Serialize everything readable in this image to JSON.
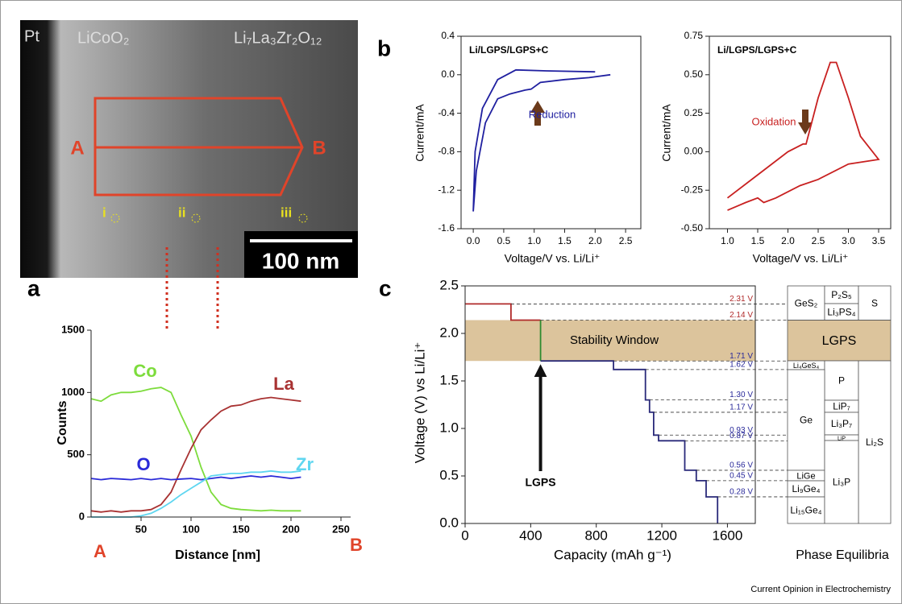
{
  "panel_labels": [
    "a",
    "b",
    "c"
  ],
  "image": {
    "labels": {
      "pt": "Pt",
      "cathode": "LiCoO₂",
      "electrolyte": "Li₇La₃Zr₂O₁₂",
      "a": "A",
      "b": "B",
      "points": [
        "i",
        "ii",
        "iii"
      ],
      "scale": "100 nm"
    }
  },
  "chart_data": [
    {
      "type": "line",
      "x_label": "Distance [nm]",
      "y_label": "Counts",
      "x": [
        0,
        10,
        20,
        30,
        40,
        50,
        60,
        70,
        80,
        90,
        100,
        110,
        120,
        130,
        140,
        150,
        160,
        170,
        180,
        190,
        200,
        210
      ],
      "series": [
        {
          "name": "Co",
          "color": "#7ddc3c",
          "values": [
            950,
            930,
            980,
            1000,
            1000,
            1010,
            1030,
            1040,
            1000,
            820,
            650,
            400,
            200,
            100,
            70,
            60,
            55,
            50,
            55,
            50,
            50,
            50
          ]
        },
        {
          "name": "La",
          "color": "#a83232",
          "values": [
            50,
            40,
            50,
            40,
            50,
            50,
            60,
            100,
            200,
            380,
            550,
            700,
            780,
            850,
            890,
            900,
            930,
            950,
            960,
            950,
            940,
            930
          ]
        },
        {
          "name": "O",
          "color": "#2a2ad8",
          "values": [
            310,
            300,
            310,
            305,
            300,
            310,
            300,
            310,
            300,
            305,
            310,
            300,
            310,
            320,
            310,
            320,
            330,
            320,
            330,
            320,
            310,
            320
          ]
        },
        {
          "name": "Zr",
          "color": "#5fd6f0",
          "values": [
            0,
            0,
            0,
            0,
            0,
            10,
            30,
            70,
            120,
            180,
            230,
            280,
            330,
            340,
            350,
            350,
            360,
            360,
            370,
            360,
            360,
            370
          ]
        }
      ],
      "xlim": [
        0,
        250
      ],
      "xticks": [
        50,
        100,
        150,
        200,
        250
      ],
      "ylim": [
        0,
        1500
      ],
      "yticks": [
        0,
        500,
        1000,
        1500
      ]
    },
    {
      "type": "line",
      "title": "Li/LGPS/LGPS+C",
      "annotation": "Reduction",
      "x_label": "Voltage/V vs. Li/Li⁺",
      "y_label": "Current/mA",
      "series": [
        {
          "color": "#2020a0",
          "x": [
            2.25,
            1.9,
            1.5,
            1.1,
            0.95,
            0.85,
            0.6,
            0.4,
            0.2,
            0.05,
            0.0,
            0.03,
            0.15,
            0.4,
            0.7,
            1.2,
            2.0
          ],
          "values": [
            0.0,
            -0.03,
            -0.05,
            -0.08,
            -0.15,
            -0.16,
            -0.2,
            -0.25,
            -0.5,
            -1.0,
            -1.42,
            -0.8,
            -0.35,
            -0.05,
            0.05,
            0.04,
            0.03
          ]
        }
      ],
      "xlim": [
        -0.2,
        2.75
      ],
      "xticks": [
        {
          "value": 0,
          "label": "0.0"
        },
        0.5,
        {
          "value": 1,
          "label": "1.0"
        },
        1.5,
        {
          "value": 2,
          "label": "2.0"
        },
        2.5
      ],
      "ylim": [
        -1.6,
        0.4
      ],
      "yticks": [
        0.4,
        {
          "value": 0,
          "label": "0.0"
        },
        -0.4,
        -0.8,
        -1.2,
        -1.6
      ]
    },
    {
      "type": "line",
      "title": "Li/LGPS/LGPS+C",
      "annotation": "Oxidation",
      "x_label": "Voltage/V vs. Li/Li⁺",
      "y_label": "Current/mA",
      "series": [
        {
          "color": "#c82020",
          "x": [
            1.0,
            1.5,
            2.0,
            2.25,
            2.3,
            2.5,
            2.7,
            2.8,
            3.0,
            3.2,
            3.5,
            3.0,
            2.5,
            2.2,
            1.8,
            1.6,
            1.5,
            1.3,
            1.0
          ],
          "values": [
            -0.3,
            -0.15,
            0.0,
            0.05,
            0.05,
            0.35,
            0.58,
            0.58,
            0.35,
            0.1,
            -0.05,
            -0.08,
            -0.18,
            -0.22,
            -0.3,
            -0.33,
            -0.3,
            -0.33,
            -0.38
          ]
        }
      ],
      "xlim": [
        0.7,
        3.7
      ],
      "xticks": [
        {
          "value": 1,
          "label": "1.0"
        },
        1.5,
        {
          "value": 2,
          "label": "2.0"
        },
        2.5,
        {
          "value": 3,
          "label": "3.0"
        },
        3.5
      ],
      "ylim": [
        -0.5,
        0.75
      ],
      "yticks": [
        0.75,
        {
          "value": 0.5,
          "label": "0.50"
        },
        0.25,
        {
          "value": 0,
          "label": "0.00"
        },
        -0.25,
        {
          "value": -0.5,
          "label": "-0.50"
        }
      ]
    },
    {
      "type": "line",
      "x_label": "Capacity (mAh g⁻¹)",
      "y_label": "Voltage (V) vs Li/Li⁺",
      "band": {
        "label": "Stability Window",
        "range": [
          1.71,
          2.14
        ],
        "color": "#dcc49c"
      },
      "arrow_label": "LGPS",
      "series": [
        {
          "color": "#b02a2a",
          "x": [
            0,
            280,
            280,
            460
          ],
          "values": [
            2.31,
            2.31,
            2.14,
            2.14
          ]
        },
        {
          "color": "#2e8b2e",
          "x": [
            460,
            460
          ],
          "values": [
            2.14,
            1.71
          ]
        },
        {
          "color": "#2a2a7a",
          "x": [
            460,
            905,
            905,
            1100,
            1100,
            1125,
            1125,
            1150,
            1150,
            1180,
            1180,
            1340,
            1340,
            1410,
            1410,
            1470,
            1470,
            1540,
            1540
          ],
          "values": [
            1.71,
            1.71,
            1.62,
            1.62,
            1.3,
            1.3,
            1.17,
            1.17,
            0.93,
            0.93,
            0.87,
            0.87,
            0.56,
            0.56,
            0.45,
            0.45,
            0.28,
            0.28,
            0
          ]
        }
      ],
      "levels": {
        "values": [
          2.31,
          2.14,
          1.71,
          1.62,
          1.3,
          1.17,
          0.93,
          0.87,
          0.56,
          0.45,
          0.28
        ],
        "value_labels": [
          "2.31 V",
          "2.14 V",
          "1.71 V",
          "1.62 V",
          "1.30 V",
          "1.17 V",
          "0.93 V",
          "0.87 V",
          "0.56 V",
          "0.45 V",
          "0.28 V"
        ],
        "colors": [
          "#b02a2a",
          "#b02a2a",
          "#2a2a9a",
          "#2a2a9a",
          "#2a2a9a",
          "#2a2a9a",
          "#2a2a9a",
          "#2a2a9a",
          "#2a2a9a",
          "#2a2a9a",
          "#2a2a9a"
        ]
      },
      "xlim": [
        0,
        1770
      ],
      "xticks": [
        0,
        400,
        800,
        1200,
        1600
      ],
      "ylim": [
        0,
        2.5
      ],
      "yticks": [
        {
          "value": 0,
          "label": "0.0"
        },
        0.5,
        {
          "value": 1,
          "label": "1.0"
        },
        1.5,
        {
          "value": 2,
          "label": "2.0"
        },
        2.5
      ]
    }
  ],
  "phase_equilibria": {
    "title": "Phase Equilibria",
    "phases": [
      "GeS₂",
      "P₂S₅",
      "Li₃PS₄",
      "S",
      "LGPS",
      "Li₄GeS₄",
      "P",
      "Li₂S",
      "Ge",
      "LiP₇",
      "Li₃P₇",
      "LiP",
      "LiGe",
      "Li₉Ge₄",
      "Li₁₅Ge₄",
      "Li₃P"
    ]
  },
  "footer": "Current Opinion in Electrochemistry"
}
